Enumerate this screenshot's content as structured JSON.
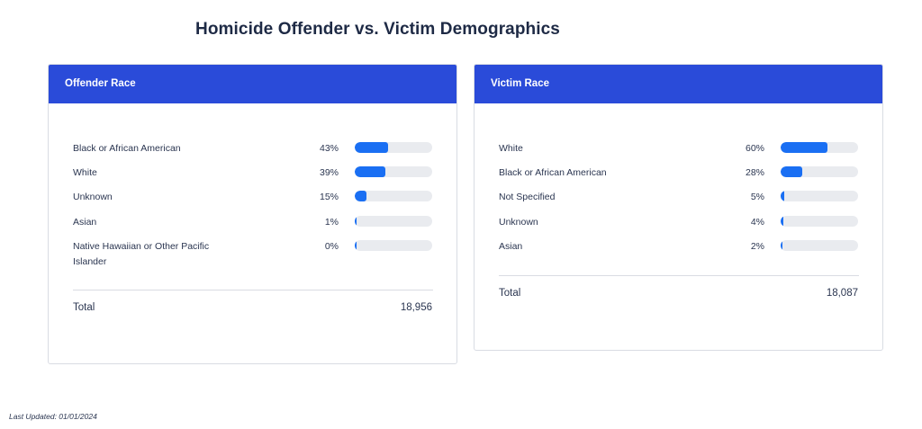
{
  "title": "Homicide Offender vs. Victim Demographics",
  "footer": {
    "last_updated": "Last Updated: 01/01/2024"
  },
  "colors": {
    "header": "#2a4bd9",
    "bar": "#1a6ff3",
    "track": "#e9ebef"
  },
  "chart_data": [
    {
      "type": "bar",
      "title": "Offender Race",
      "categories": [
        "Black or African American",
        "White",
        "Unknown",
        "Asian",
        "Native Hawaiian or Other Pacific Islander"
      ],
      "values": [
        43,
        39,
        15,
        1,
        0
      ],
      "labels": [
        "43%",
        "39%",
        "15%",
        "1%",
        "0%"
      ],
      "total_label": "Total",
      "total": "18,956",
      "ylim": [
        0,
        100
      ]
    },
    {
      "type": "bar",
      "title": "Victim Race",
      "categories": [
        "White",
        "Black or African American",
        "Not Specified",
        "Unknown",
        "Asian"
      ],
      "values": [
        60,
        28,
        5,
        4,
        2
      ],
      "labels": [
        "60%",
        "28%",
        "5%",
        "4%",
        "2%"
      ],
      "total_label": "Total",
      "total": "18,087",
      "ylim": [
        0,
        100
      ]
    }
  ]
}
